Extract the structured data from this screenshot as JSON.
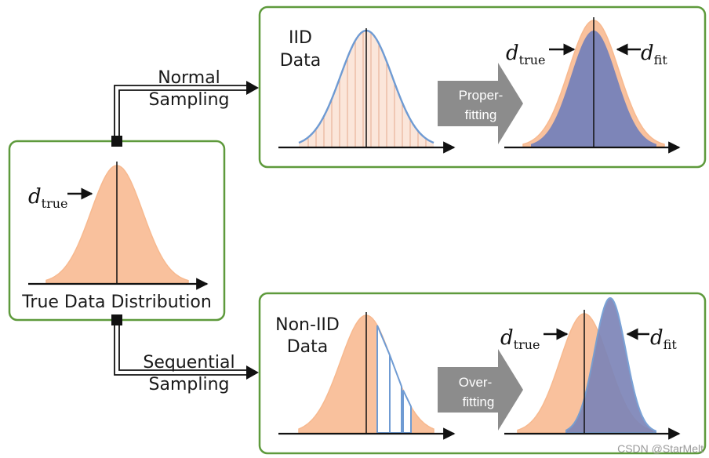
{
  "source": {
    "title": "True Data Distribution",
    "d_symbol": "d",
    "true_sub": "true"
  },
  "branches": {
    "normal": {
      "line1": "Normal",
      "line2": "Sampling"
    },
    "sequential": {
      "line1": "Sequential",
      "line2": "Sampling"
    }
  },
  "panels": {
    "iid": {
      "data_line1": "IID",
      "data_line2": "Data",
      "process_line1": "Proper-",
      "process_line2": "fitting",
      "d_symbol": "d",
      "true_sub": "true",
      "fit_sub": "fit"
    },
    "noniid": {
      "data_line1": "Non-IID",
      "data_line2": "Data",
      "process_line1": "Over-",
      "process_line2": "fitting",
      "d_symbol": "d",
      "true_sub": "true",
      "fit_sub": "fit"
    }
  },
  "watermark": "CSDN @StarMelt",
  "colors": {
    "peach": "#f9c19d",
    "blue_fill": "#7d85b8",
    "blue_line": "#6f9bd3",
    "green_border": "#5e9a3c",
    "gray_arrow": "#8c8c8c"
  }
}
